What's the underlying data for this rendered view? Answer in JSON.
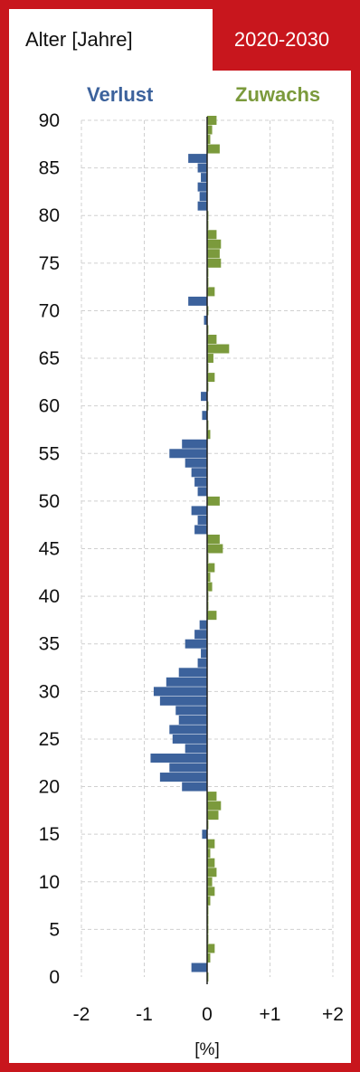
{
  "header": {
    "left_label": "Alter [Jahre]",
    "right_label": "2020-2030"
  },
  "legend": {
    "loss_label": "Verlust",
    "gain_label": "Zuwachs"
  },
  "colors": {
    "frame": "#c8161d",
    "loss": "#3c629c",
    "gain": "#7b9a3c",
    "grid": "#d0d0d0",
    "axis": "#222222"
  },
  "chart_data": {
    "type": "bar",
    "orientation": "horizontal",
    "title": "",
    "xlabel": "[%]",
    "ylabel": "Alter [Jahre]",
    "xlim": [
      -2,
      2
    ],
    "ylim": [
      0,
      90
    ],
    "x_ticks": [
      "-2",
      "-1",
      "0",
      "+1",
      "+2"
    ],
    "x_tick_values": [
      -2,
      -1,
      0,
      1,
      2
    ],
    "y_ticks": [
      "0",
      "5",
      "10",
      "15",
      "20",
      "25",
      "30",
      "35",
      "40",
      "45",
      "50",
      "55",
      "60",
      "65",
      "70",
      "75",
      "80",
      "85",
      "90"
    ],
    "y_tick_values": [
      0,
      5,
      10,
      15,
      20,
      25,
      30,
      35,
      40,
      45,
      50,
      55,
      60,
      65,
      70,
      75,
      80,
      85,
      90
    ],
    "grid": true,
    "categories": [
      0,
      1,
      2,
      3,
      4,
      5,
      6,
      7,
      8,
      9,
      10,
      11,
      12,
      13,
      14,
      15,
      16,
      17,
      18,
      19,
      20,
      21,
      22,
      23,
      24,
      25,
      26,
      27,
      28,
      29,
      30,
      31,
      32,
      33,
      34,
      35,
      36,
      37,
      38,
      39,
      40,
      41,
      42,
      43,
      44,
      45,
      46,
      47,
      48,
      49,
      50,
      51,
      52,
      53,
      54,
      55,
      56,
      57,
      58,
      59,
      60,
      61,
      62,
      63,
      64,
      65,
      66,
      67,
      68,
      69,
      70,
      71,
      72,
      73,
      74,
      75,
      76,
      77,
      78,
      79,
      80,
      81,
      82,
      83,
      84,
      85,
      86,
      87,
      88,
      89,
      90
    ],
    "values": [
      0.02,
      -0.25,
      0.05,
      0.12,
      0.02,
      0.02,
      0.02,
      0.02,
      0.05,
      0.12,
      0.08,
      0.15,
      0.12,
      0.05,
      0.12,
      -0.08,
      0.02,
      0.18,
      0.22,
      0.15,
      -0.4,
      -0.75,
      -0.6,
      -0.9,
      -0.35,
      -0.55,
      -0.6,
      -0.45,
      -0.5,
      -0.75,
      -0.85,
      -0.65,
      -0.45,
      -0.15,
      -0.1,
      -0.35,
      -0.2,
      -0.12,
      0.15,
      0.02,
      0.02,
      0.08,
      0.05,
      0.12,
      0.02,
      0.25,
      0.2,
      -0.2,
      -0.15,
      -0.25,
      0.2,
      -0.15,
      -0.2,
      -0.25,
      -0.35,
      -0.6,
      -0.4,
      0.05,
      0.02,
      -0.08,
      0.02,
      -0.1,
      0.02,
      0.12,
      0.02,
      0.1,
      0.35,
      0.15,
      0.02,
      -0.05,
      0.02,
      -0.3,
      0.12,
      0.02,
      0.02,
      0.22,
      0.2,
      0.22,
      0.15,
      0.02,
      0.02,
      -0.15,
      -0.12,
      -0.15,
      -0.1,
      -0.15,
      -0.3,
      0.2,
      0.05,
      0.08,
      0.15
    ]
  }
}
